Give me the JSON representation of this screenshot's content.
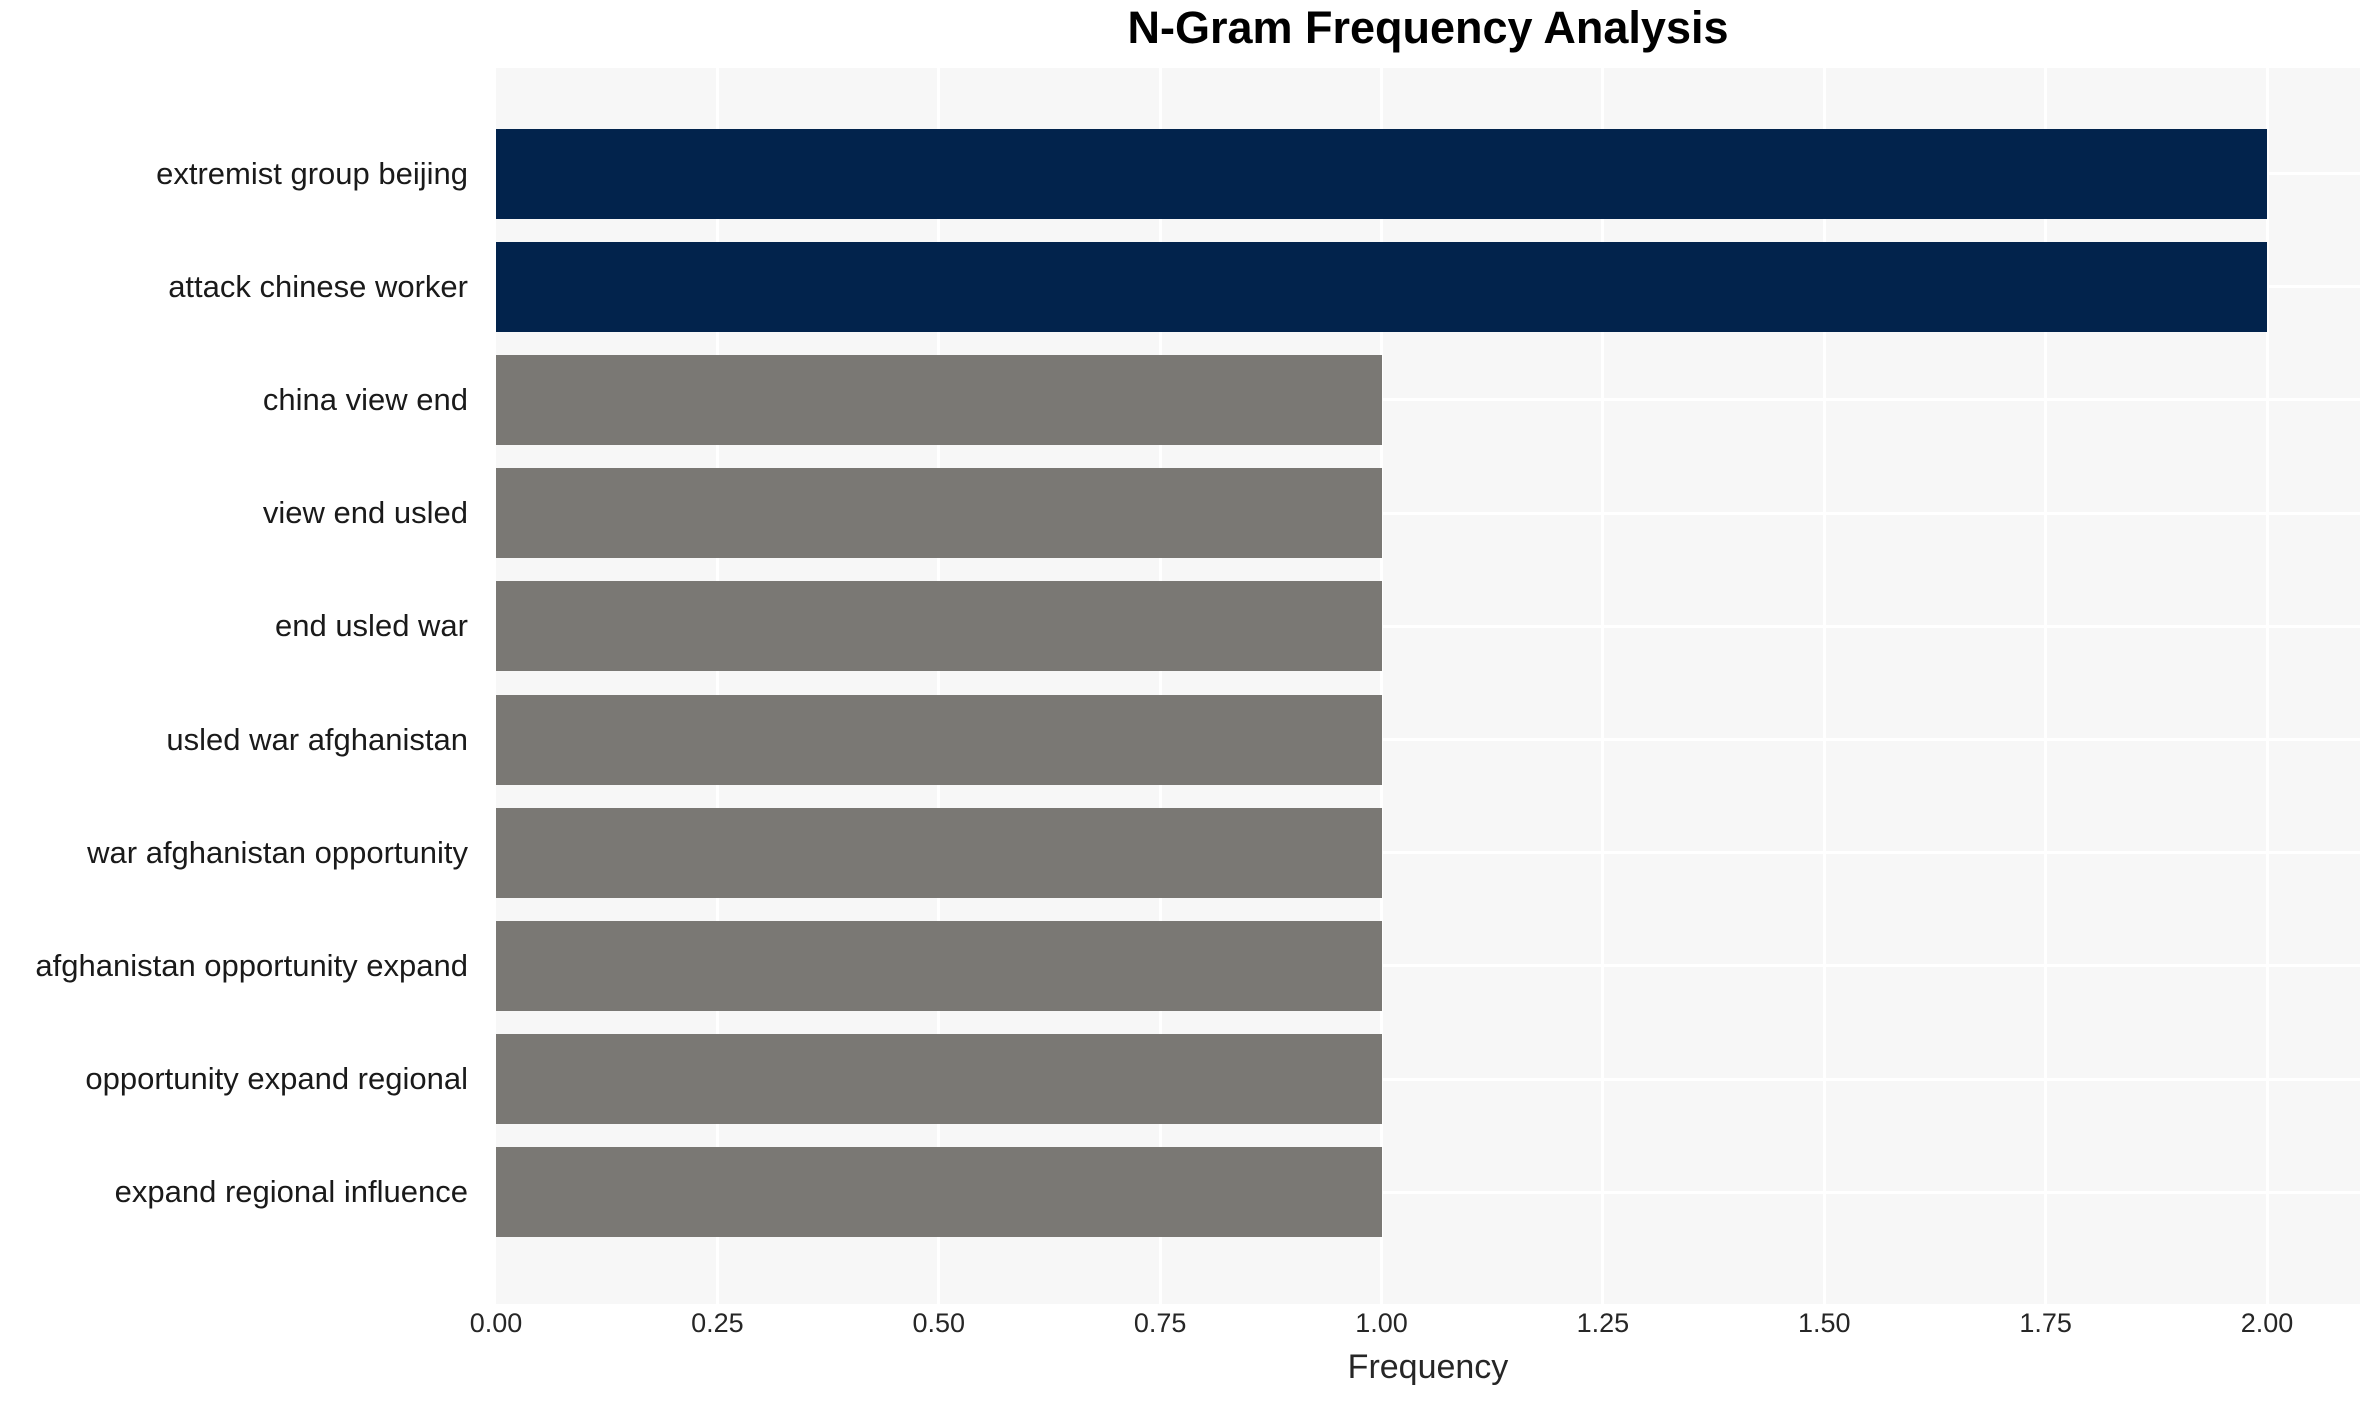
{
  "chart_data": {
    "type": "bar",
    "orientation": "horizontal",
    "title": "N-Gram Frequency Analysis",
    "xlabel": "Frequency",
    "ylabel": "",
    "categories": [
      "extremist group beijing",
      "attack chinese worker",
      "china view end",
      "view end usled",
      "end usled war",
      "usled war afghanistan",
      "war afghanistan opportunity",
      "afghanistan opportunity expand",
      "opportunity expand regional",
      "expand regional influence"
    ],
    "values": [
      2,
      2,
      1,
      1,
      1,
      1,
      1,
      1,
      1,
      1
    ],
    "bar_colors": [
      "#02234C",
      "#02234C",
      "#7A7874",
      "#7A7874",
      "#7A7874",
      "#7A7874",
      "#7A7874",
      "#7A7874",
      "#7A7874",
      "#7A7874"
    ],
    "xticks": [
      0,
      0.25,
      0.5,
      0.75,
      1.0,
      1.25,
      1.5,
      1.75,
      2.0
    ],
    "xtick_labels": [
      "0.00",
      "0.25",
      "0.50",
      "0.75",
      "1.00",
      "1.25",
      "1.50",
      "1.75",
      "2.00"
    ],
    "xlim": [
      0,
      2.105
    ],
    "grid": true,
    "grid_color": "#FFFFFF",
    "plot_background": "#F7F7F7",
    "figure_background": "#FFFFFF",
    "highlight_color": "#02234C",
    "default_bar_color": "#7A7874",
    "title_color": "#000000",
    "text_color": "#262626",
    "legend": false
  }
}
